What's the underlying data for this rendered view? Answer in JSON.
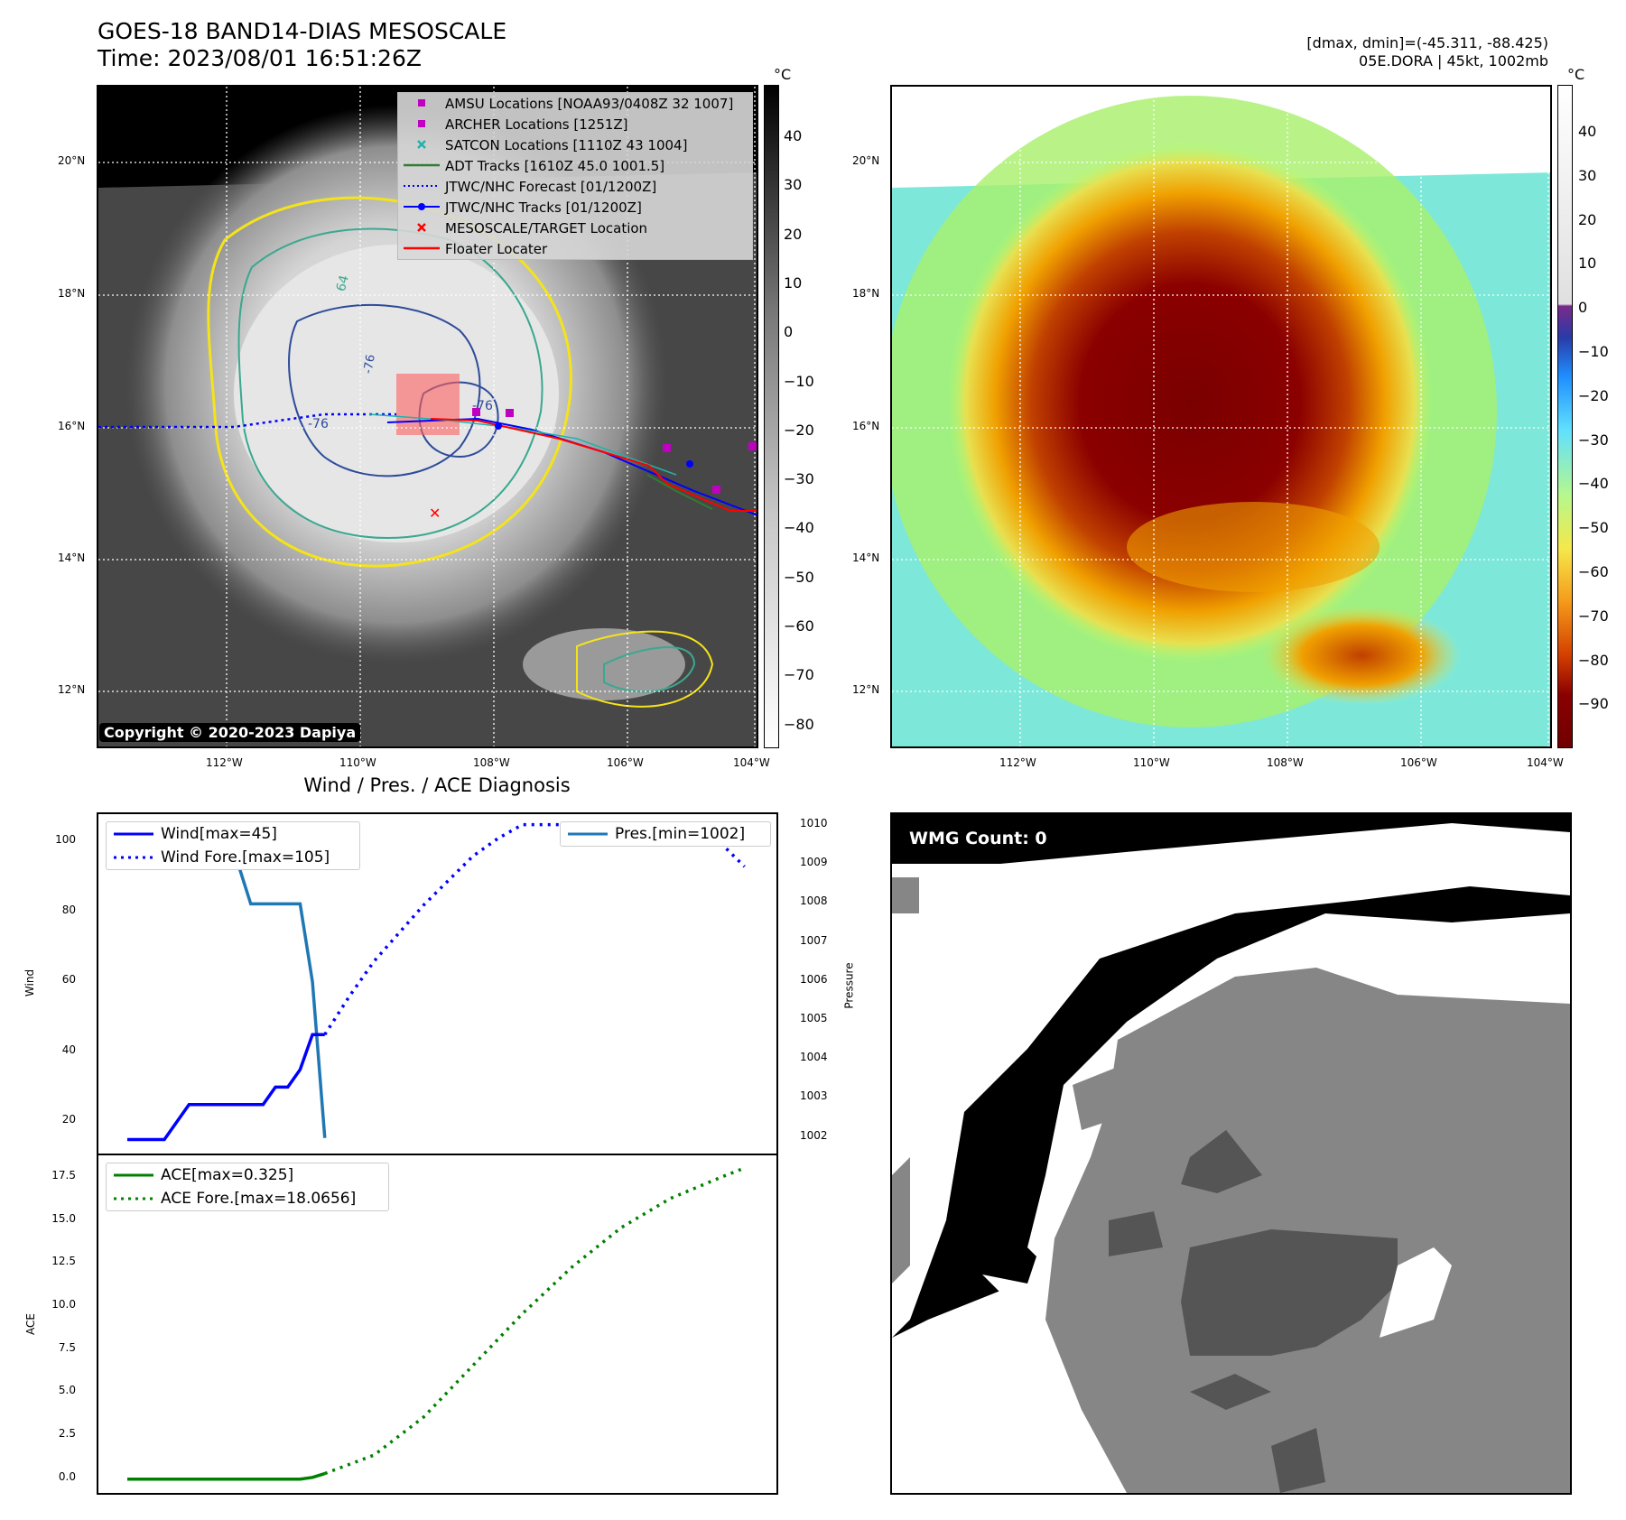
{
  "header": {
    "title_line1": "GOES-18 BAND14-DIAS MESOSCALE",
    "title_line2": "Time: 2023/08/01 16:51:26Z",
    "right_line1": "[dmax, dmin]=(-45.311, -88.425)",
    "right_line2": "05E.DORA | 45kt, 1002mb"
  },
  "map_axes": {
    "lat_labels": [
      "20°N",
      "18°N",
      "16°N",
      "14°N",
      "12°N"
    ],
    "lon_labels": [
      "112°W",
      "110°W",
      "108°W",
      "106°W",
      "104°W"
    ]
  },
  "ir_panel": {
    "legend": [
      {
        "label": "AMSU Locations [NOAA93/0408Z 32 1007]",
        "marker": "square",
        "color": "#c000c0"
      },
      {
        "label": "ARCHER Locations [1251Z]",
        "marker": "square",
        "color": "#c000c0"
      },
      {
        "label": "SATCON Locations [1110Z 43 1004]",
        "marker": "x",
        "color": "#20b2aa"
      },
      {
        "label": "ADT Tracks [1610Z 45.0 1001.5]",
        "marker": "line",
        "color": "#2e7d32"
      },
      {
        "label": "JTWC/NHC Forecast [01/1200Z]",
        "marker": "dotted",
        "color": "#0000ff"
      },
      {
        "label": "JTWC/NHC Tracks [01/1200Z]",
        "marker": "line-dot",
        "color": "#0000ff"
      },
      {
        "label": "MESOSCALE/TARGET Location",
        "marker": "x",
        "color": "#ff0000"
      },
      {
        "label": "Floater Locater",
        "marker": "line",
        "color": "#ff0000"
      }
    ],
    "contour_labels": [
      "64",
      "-76",
      "-76",
      "-76"
    ],
    "copyright": "Copyright © 2020-2023 Dapiya",
    "colorbar_unit": "°C",
    "colorbar_ticks": [
      "40",
      "30",
      "20",
      "10",
      "0",
      "−10",
      "−20",
      "−30",
      "−40",
      "−50",
      "−60",
      "−70",
      "−80"
    ]
  },
  "color_panel": {
    "colorbar_unit": "°C",
    "colorbar_ticks": [
      "40",
      "30",
      "20",
      "10",
      "0",
      "−10",
      "−20",
      "−30",
      "−40",
      "−50",
      "−60",
      "−70",
      "−80",
      "−90"
    ]
  },
  "diagnosis": {
    "title": "Wind / Pres. / ACE Diagnosis",
    "wind_ylabel": "Wind",
    "pressure_ylabel": "Pressure",
    "ace_ylabel": "ACE",
    "wind_ticks": [
      "100",
      "80",
      "60",
      "40",
      "20"
    ],
    "pressure_ticks": [
      "1010",
      "1009",
      "1008",
      "1007",
      "1006",
      "1005",
      "1004",
      "1003",
      "1002"
    ],
    "ace_ticks": [
      "17.5",
      "15.0",
      "12.5",
      "10.0",
      "7.5",
      "5.0",
      "2.5",
      "0.0"
    ],
    "legend_wind": "Wind[max=45]",
    "legend_wind_fore": "Wind Fore.[max=105]",
    "legend_pres": "Pres.[min=1002]",
    "legend_ace": "ACE[max=0.325]",
    "legend_ace_fore": "ACE Fore.[max=18.0656]"
  },
  "wmg_panel": {
    "label": "WMG Count: 0"
  },
  "chart_data": [
    {
      "type": "line",
      "title": "Wind / Pres. / ACE Diagnosis",
      "ylabel": "Wind",
      "ylim": [
        11,
        108
      ],
      "series": [
        {
          "name": "Wind[max=45]",
          "x": [
            0,
            1,
            2,
            3,
            4,
            5,
            6,
            7,
            8,
            9,
            10,
            11,
            12,
            13,
            14,
            15,
            16
          ],
          "values": [
            15,
            15,
            15,
            15,
            20,
            25,
            25,
            25,
            25,
            25,
            25,
            25,
            30,
            30,
            35,
            45,
            45
          ],
          "color": "#0000ff"
        },
        {
          "name": "Wind Fore.[max=105]",
          "x": [
            16,
            18,
            20,
            22,
            24,
            26,
            28,
            30,
            32,
            34,
            36,
            38,
            40,
            42,
            44,
            46,
            48,
            50
          ],
          "values": [
            45,
            56,
            66,
            74,
            82,
            89,
            96,
            101,
            105,
            105,
            105,
            105,
            105,
            105,
            105,
            100,
            100,
            93
          ],
          "color": "#0000ff"
        }
      ]
    },
    {
      "type": "line",
      "ylabel": "Pressure",
      "ylim": [
        1001.6,
        1010.3
      ],
      "series": [
        {
          "name": "Pres.[min=1002]",
          "x": [
            0,
            4,
            6,
            9,
            10,
            14,
            15,
            16
          ],
          "values": [
            1010,
            1010,
            1009,
            1009,
            1008,
            1008,
            1006,
            1002
          ],
          "color": "#1f77b4"
        }
      ]
    },
    {
      "type": "line",
      "ylabel": "ACE",
      "ylim": [
        -0.8,
        18.8
      ],
      "series": [
        {
          "name": "ACE[max=0.325]",
          "x": [
            0,
            14,
            15,
            16
          ],
          "values": [
            0,
            0,
            0.1,
            0.325
          ],
          "color": "#008000"
        },
        {
          "name": "ACE Fore.[max=18.0656]",
          "x": [
            16,
            20,
            24,
            28,
            32,
            36,
            40,
            44,
            48,
            50
          ],
          "values": [
            0.325,
            1.4,
            3.6,
            6.6,
            9.6,
            12.3,
            14.6,
            16.3,
            17.5,
            18.0656
          ],
          "color": "#008000"
        }
      ]
    }
  ]
}
